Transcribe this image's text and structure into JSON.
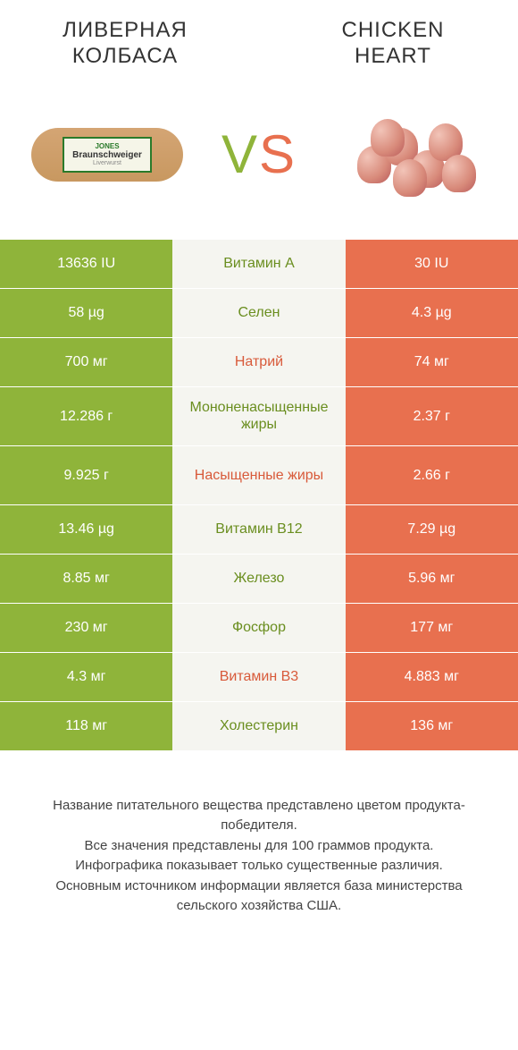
{
  "header": {
    "left_title": "ЛИВЕРНАЯ КОЛБАСА",
    "right_title": "CHICKEN HEART"
  },
  "vs": {
    "v": "V",
    "s": "S"
  },
  "product_left": {
    "brand": "JONES",
    "name": "Braunschweiger",
    "sub": "Liverwurst"
  },
  "colors": {
    "left_bg": "#8fb43a",
    "right_bg": "#e8704f",
    "mid_bg": "#f5f5f0",
    "mid_green": "#6a8e1f",
    "mid_orange": "#d85a3a"
  },
  "rows": [
    {
      "left": "13636 IU",
      "mid": "Витамин A",
      "right": "30 IU",
      "winner": "left",
      "tall": false
    },
    {
      "left": "58 µg",
      "mid": "Селен",
      "right": "4.3 µg",
      "winner": "left",
      "tall": false
    },
    {
      "left": "700 мг",
      "mid": "Натрий",
      "right": "74 мг",
      "winner": "right",
      "tall": false
    },
    {
      "left": "12.286 г",
      "mid": "Мононенасыщенные жиры",
      "right": "2.37 г",
      "winner": "left",
      "tall": true
    },
    {
      "left": "9.925 г",
      "mid": "Насыщенные жиры",
      "right": "2.66 г",
      "winner": "right",
      "tall": true
    },
    {
      "left": "13.46 µg",
      "mid": "Витамин B12",
      "right": "7.29 µg",
      "winner": "left",
      "tall": false
    },
    {
      "left": "8.85 мг",
      "mid": "Железо",
      "right": "5.96 мг",
      "winner": "left",
      "tall": false
    },
    {
      "left": "230 мг",
      "mid": "Фосфор",
      "right": "177 мг",
      "winner": "left",
      "tall": false
    },
    {
      "left": "4.3 мг",
      "mid": "Витамин B3",
      "right": "4.883 мг",
      "winner": "right",
      "tall": false
    },
    {
      "left": "118 мг",
      "mid": "Холестерин",
      "right": "136 мг",
      "winner": "left",
      "tall": false
    }
  ],
  "footer": {
    "line1": "Название питательного вещества представлено цветом продукта-победителя.",
    "line2": "Все значения представлены для 100 граммов продукта.",
    "line3": "Инфографика показывает только существенные различия.",
    "line4": "Основным источником информации является база министерства сельского хозяйства США."
  }
}
